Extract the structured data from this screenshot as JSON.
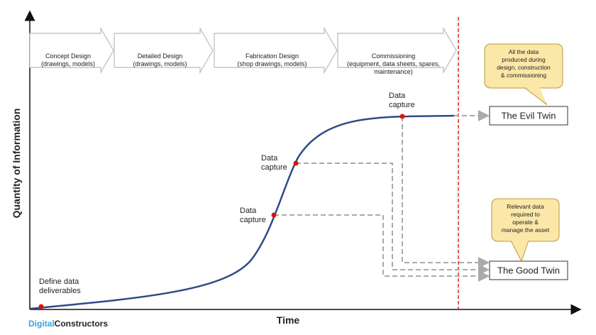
{
  "phases": [
    {
      "lines": [
        "Concept Design",
        "(drawings, models)"
      ]
    },
    {
      "lines": [
        "Detailed Design",
        "(drawings, models)"
      ]
    },
    {
      "lines": [
        "Fabrication Design",
        "(shop drawings, models)"
      ]
    },
    {
      "lines": [
        "Commissioning",
        "(equipment,  data sheets, spares,",
        "maintenance)"
      ]
    }
  ],
  "axes": {
    "y_label": "Quantity of Information",
    "x_label": "Time"
  },
  "points": [
    {
      "lines": [
        "Define data",
        "deliverables"
      ]
    },
    {
      "lines": [
        "Data",
        "capture"
      ]
    },
    {
      "lines": [
        "Data",
        "capture"
      ]
    },
    {
      "lines": [
        "Data",
        "capture"
      ]
    }
  ],
  "outputs": [
    {
      "label": "The Evil Twin",
      "callout": [
        "All the data",
        "produced during",
        "design, construction",
        "& commissioning"
      ]
    },
    {
      "label": "The Good Twin",
      "callout": [
        "Relevant data",
        "required to",
        "operate &",
        "manage the asset"
      ]
    }
  ],
  "logo": {
    "part1": "Digital",
    "part2": "Constructors"
  }
}
